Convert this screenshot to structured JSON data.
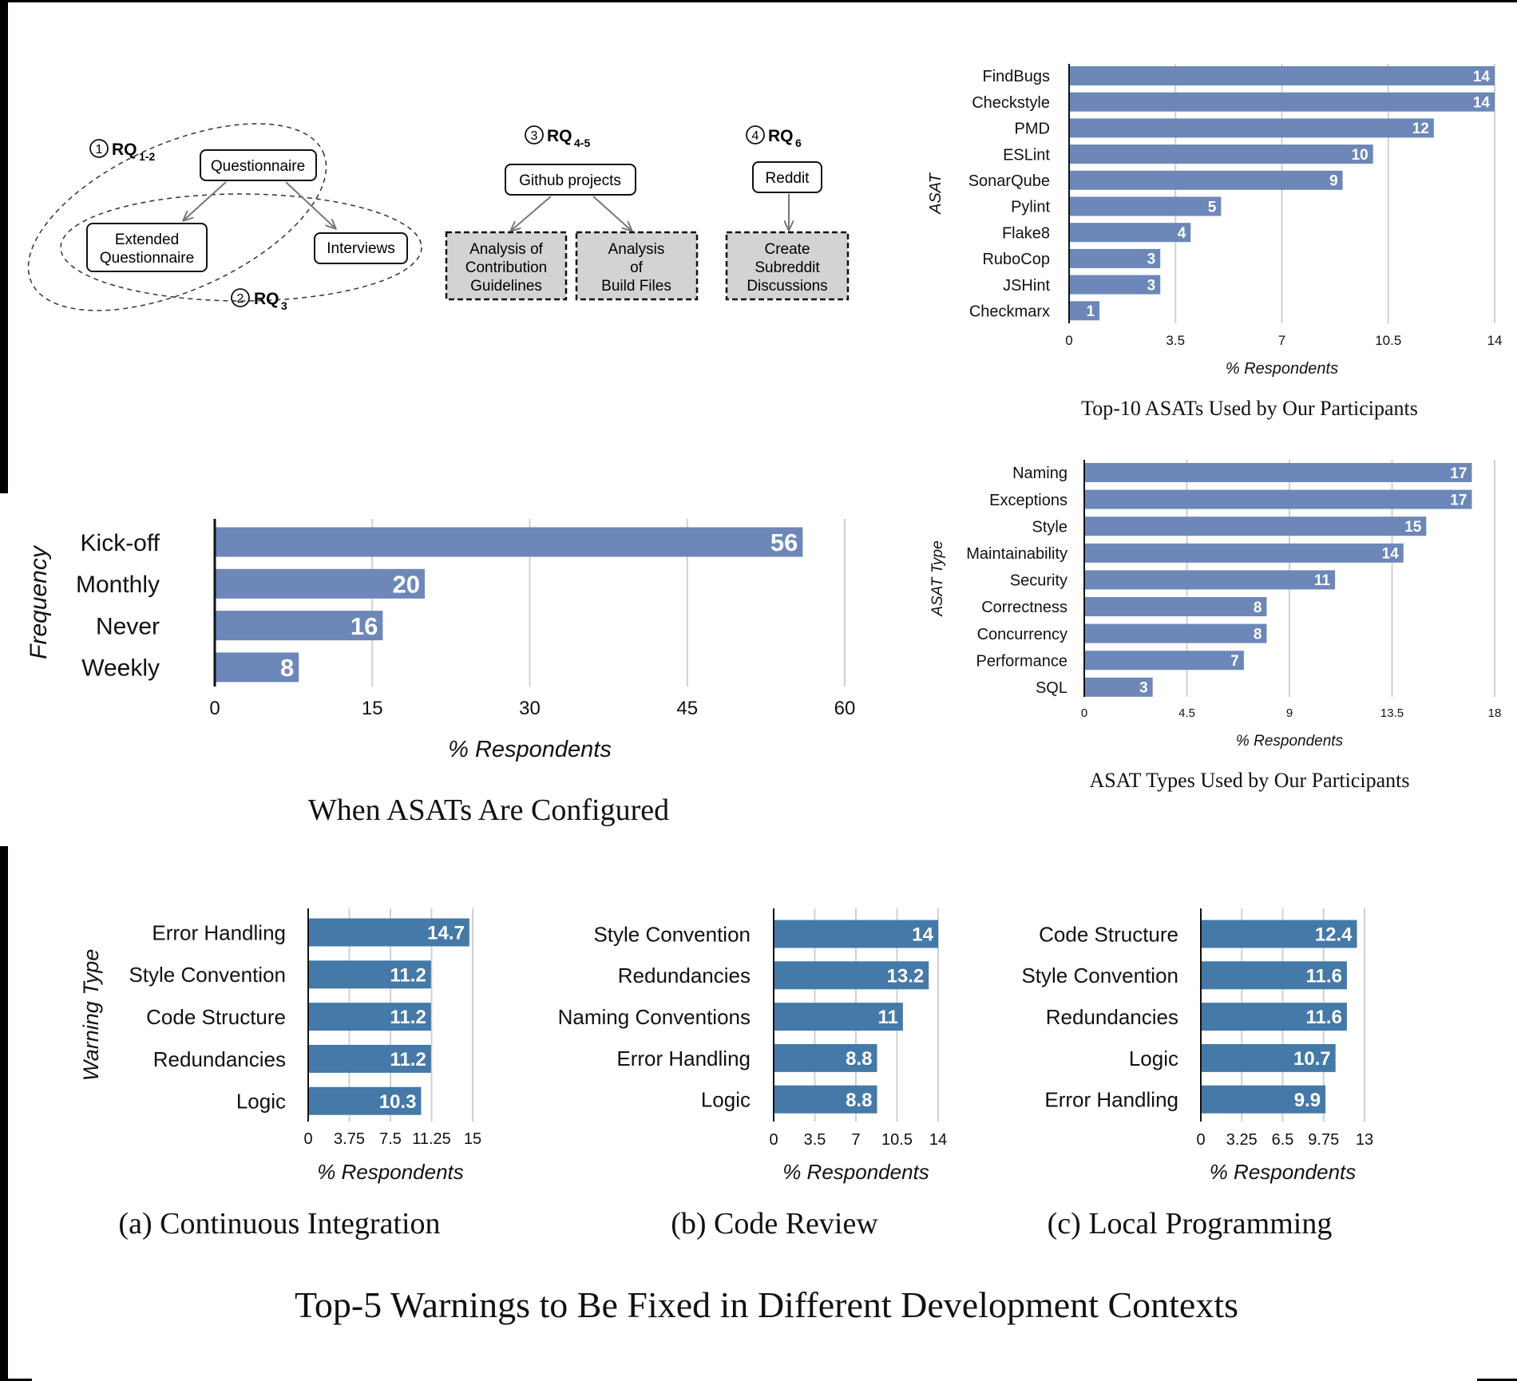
{
  "colors": {
    "bar_top": "#6c87b8",
    "bar_bottom": "#4479a8",
    "grid": "#d0d0d0",
    "diagram_fill": "#d3d3d3"
  },
  "diagram": {
    "rq12_label": "RQ",
    "rq12_sub": "1-2",
    "rq3_label": "RQ",
    "rq3_sub": "3",
    "rq45_label": "RQ",
    "rq45_sub": "4-5",
    "rq6_label": "RQ",
    "rq6_sub": "6",
    "num1": "1",
    "num2": "2",
    "num3": "3",
    "num4": "4",
    "questionnaire": "Questionnaire",
    "extended_line1": "Extended",
    "extended_line2": "Questionnaire",
    "interviews": "Interviews",
    "github": "Github projects",
    "contrib_line1": "Analysis of",
    "contrib_line2": "Contribution",
    "contrib_line3": "Guidelines",
    "build_line1": "Analysis",
    "build_line2": "of",
    "build_line3": "Build Files",
    "reddit": "Reddit",
    "subreddit_line1": "Create",
    "subreddit_line2": "Subreddit",
    "subreddit_line3": "Discussions"
  },
  "captions": {
    "top_asats": "Top-10 ASATs Used by Our Participants",
    "asat_types": "ASAT Types Used by Our Participants",
    "configured": "When ASATs Are Configured",
    "ci": "(a) Continuous Integration",
    "cr": "(b) Code Review",
    "lp": "(c) Local Programming",
    "overall": "Top-5 Warnings to Be Fixed in Different Development Contexts"
  },
  "chart_data": [
    {
      "id": "top_asats",
      "type": "bar",
      "orientation": "horizontal",
      "categories": [
        "FindBugs",
        "Checkstyle",
        "PMD",
        "ESLint",
        "SonarQube",
        "Pylint",
        "Flake8",
        "RuboCop",
        "JSHint",
        "Checkmarx"
      ],
      "values": [
        14,
        14,
        12,
        10,
        9,
        5,
        4,
        3,
        3,
        1
      ],
      "xlabel": "% Respondents",
      "ylabel": "ASAT",
      "xlim": [
        0,
        14
      ],
      "ticks": [
        "0",
        "3.5",
        "7",
        "10.5",
        "14"
      ],
      "grid": true
    },
    {
      "id": "asat_types",
      "type": "bar",
      "orientation": "horizontal",
      "categories": [
        "Naming",
        "Exceptions",
        "Style",
        "Maintainability",
        "Security",
        "Correctness",
        "Concurrency",
        "Performance",
        "SQL"
      ],
      "values": [
        17,
        17,
        15,
        14,
        11,
        8,
        8,
        7,
        3
      ],
      "xlabel": "% Respondents",
      "ylabel": "ASAT Type",
      "xlim": [
        0,
        18
      ],
      "ticks": [
        "0",
        "4.5",
        "9",
        "13.5",
        "18"
      ],
      "grid": true
    },
    {
      "id": "configured",
      "type": "bar",
      "orientation": "horizontal",
      "categories": [
        "Kick-off",
        "Monthly",
        "Never",
        "Weekly"
      ],
      "values": [
        56,
        20,
        16,
        8
      ],
      "xlabel": "% Respondents",
      "ylabel": "Frequency",
      "xlim": [
        0,
        60
      ],
      "ticks": [
        "0",
        "15",
        "30",
        "45",
        "60"
      ],
      "grid": true
    },
    {
      "id": "ci",
      "type": "bar",
      "orientation": "horizontal",
      "categories": [
        "Error Handling",
        "Style Convention",
        "Code Structure",
        "Redundancies",
        "Logic"
      ],
      "values": [
        14.7,
        11.2,
        11.2,
        11.2,
        10.3
      ],
      "xlabel": "% Respondents",
      "ylabel": "Warning Type",
      "xlim": [
        0,
        15
      ],
      "ticks": [
        "0",
        "3.75",
        "7.5",
        "11.25",
        "15"
      ],
      "grid": true
    },
    {
      "id": "cr",
      "type": "bar",
      "orientation": "horizontal",
      "categories": [
        "Style Convention",
        "Redundancies",
        "Naming Conventions",
        "Error Handling",
        "Logic"
      ],
      "values": [
        14,
        13.2,
        11,
        8.8,
        8.8
      ],
      "xlabel": "% Respondents",
      "ylabel": "",
      "xlim": [
        0,
        14
      ],
      "ticks": [
        "0",
        "3.5",
        "7",
        "10.5",
        "14"
      ],
      "grid": true
    },
    {
      "id": "lp",
      "type": "bar",
      "orientation": "horizontal",
      "categories": [
        "Code Structure",
        "Style Convention",
        "Redundancies",
        "Logic",
        "Error Handling"
      ],
      "values": [
        12.4,
        11.6,
        11.6,
        10.7,
        9.9
      ],
      "xlabel": "% Respondents",
      "ylabel": "",
      "xlim": [
        0,
        13
      ],
      "ticks": [
        "0",
        "3.25",
        "6.5",
        "9.75",
        "13"
      ],
      "grid": true
    }
  ]
}
